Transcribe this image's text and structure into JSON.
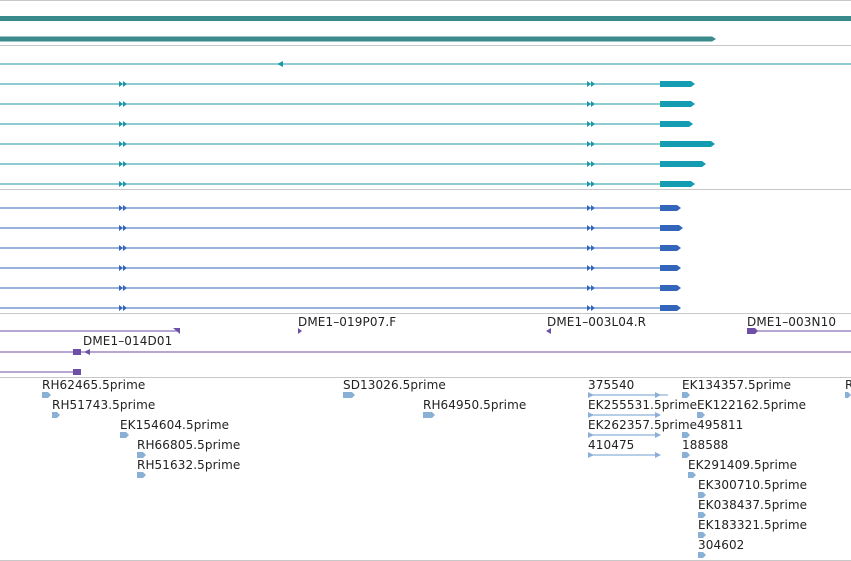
{
  "colors": {
    "assembly": "#3a8a8c",
    "mrna": "#1c97a5",
    "mrna_exon": "#149cb3",
    "cds": "#3366bb",
    "clone": "#6e4fa6",
    "est": "#8ab0d6",
    "separator": "#c8c8c8"
  },
  "tracks": {
    "clone_labels": [
      "DME1–019P07.F",
      "DME1–003L04.R",
      "DME1–003N10",
      "DME1–014D01"
    ],
    "est_labels": [
      "RH62465.5prime",
      "RH51743.5prime",
      "EK154604.5prime",
      "RH66805.5prime",
      "RH51632.5prime",
      "SD13026.5prime",
      "RH64950.5prime",
      "375540",
      "EK255531.5prime",
      "EK262357.5prime",
      "410475",
      "EK134357.5prime",
      "EK122162.5prime",
      "495811",
      "188588",
      "EK291409.5prime",
      "EK300710.5prime",
      "EK038437.5prime",
      "EK183321.5prime",
      "304602",
      "R"
    ]
  }
}
